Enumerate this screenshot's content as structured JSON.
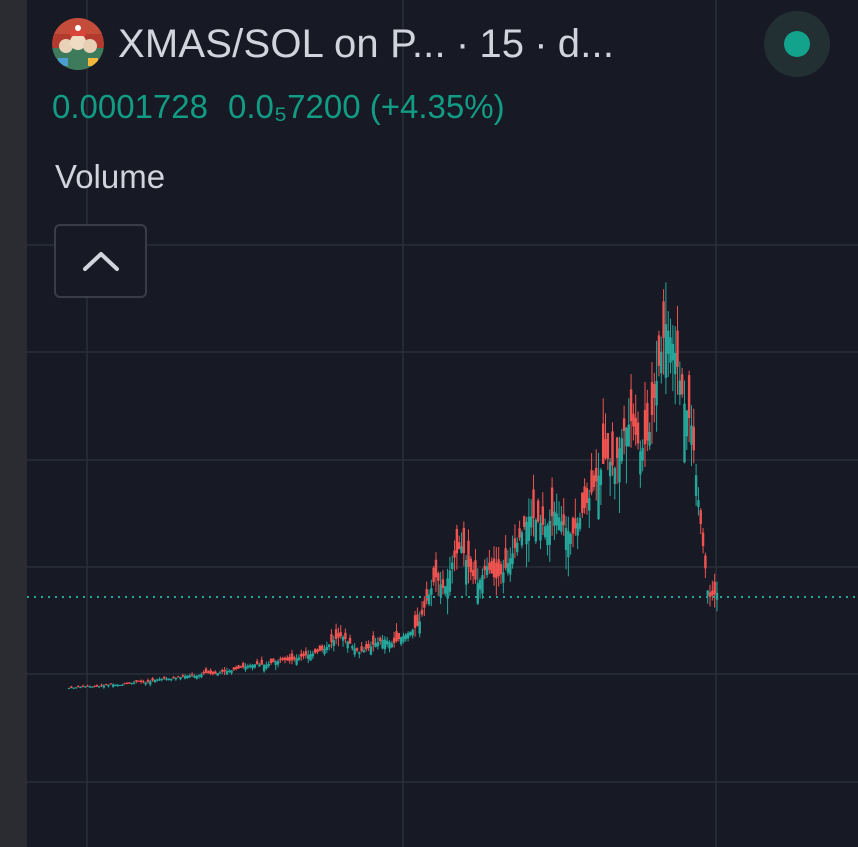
{
  "header": {
    "title": "XMAS/SOL on P...",
    "interval": "15",
    "exchange": "d...",
    "separator": "·"
  },
  "price": {
    "last": "0.0001728",
    "change_abs": "0.0₅7200",
    "change_pct": "(+4.35%)"
  },
  "indicator": {
    "label": "Volume"
  },
  "icons": {
    "logo": "token-logo-icon",
    "live": "live-status-icon",
    "collapse": "chevron-up-icon"
  },
  "colors": {
    "up": "#26a69a",
    "down": "#ef5350",
    "price_text": "#129c84",
    "live": "#13a28c",
    "background": "#171a25"
  },
  "chart_data": {
    "type": "candlestick",
    "title": "XMAS/SOL on P... · 15 · d...",
    "ylabel": "",
    "xlabel": "",
    "last_price": 0.0001728,
    "price_line_style": "dotted",
    "grid": true,
    "approx_close_series": [
      1.5e-05,
      1.6e-05,
      1.8e-05,
      1.7e-05,
      1.9e-05,
      2.1e-05,
      2e-05,
      2.2e-05,
      2.6e-05,
      2.4e-05,
      2.8e-05,
      3.1e-05,
      3e-05,
      3.3e-05,
      3.6e-05,
      3.5e-05,
      4e-05,
      3.8e-05,
      4.2e-05,
      4.4e-05,
      4.8e-05,
      5.2e-05,
      5.5e-05,
      5.3e-05,
      5.8e-05,
      6.2e-05,
      6e-05,
      6.6e-05,
      7e-05,
      7.4e-05,
      8e-05,
      9.4e-05,
      0.000102,
      8.8e-05,
      7.4e-05,
      8e-05,
      9e-05,
      9.6e-05,
      8.8e-05,
      0.0001,
      0.000108,
      0.00012,
      0.000162,
      0.0002,
      0.000178,
      0.000226,
      0.000252,
      0.00021,
      0.000188,
      0.000218,
      0.000196,
      0.000208,
      0.000238,
      0.00027,
      0.000302,
      0.000292,
      0.000282,
      0.00031,
      0.000286,
      0.000268,
      0.0003,
      0.00033,
      0.000364,
      0.0004,
      0.00038,
      0.00044,
      0.00046,
      0.000408,
      0.00043,
      0.000534,
      0.00062,
      0.00058,
      0.000496,
      0.000452,
      0.0003,
      0.000165,
      0.000173
    ]
  }
}
